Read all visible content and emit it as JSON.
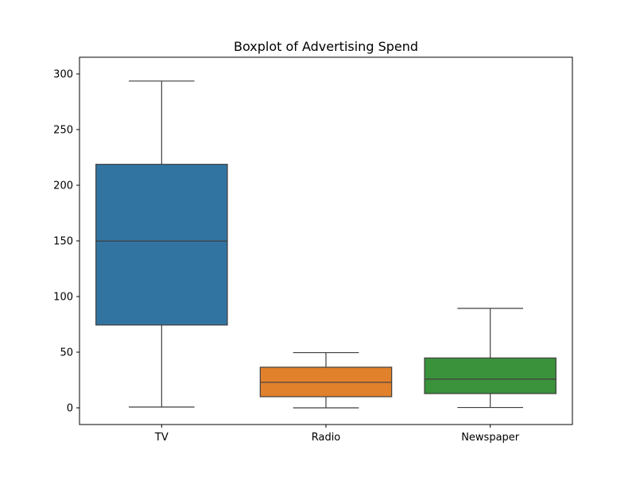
{
  "chart_data": {
    "type": "boxplot",
    "title": "Boxplot of Advertising Spend",
    "xlabel": "",
    "ylabel": "",
    "ylim": [
      -15,
      315
    ],
    "yticks": [
      0,
      50,
      100,
      150,
      200,
      250,
      300
    ],
    "grid": false,
    "categories": [
      "TV",
      "Radio",
      "Newspaper"
    ],
    "series": [
      {
        "category": "TV",
        "whisker_low": 0.7,
        "q1": 74.4,
        "median": 149.8,
        "q3": 218.8,
        "whisker_high": 293.6,
        "color": "#3274a1"
      },
      {
        "category": "Radio",
        "whisker_low": 0.0,
        "q1": 10.0,
        "median": 22.9,
        "q3": 36.5,
        "whisker_high": 49.6,
        "color": "#e1812c"
      },
      {
        "category": "Newspaper",
        "whisker_low": 0.3,
        "q1": 12.8,
        "median": 25.8,
        "q3": 44.8,
        "whisker_high": 89.4,
        "color": "#3a923a"
      }
    ]
  }
}
